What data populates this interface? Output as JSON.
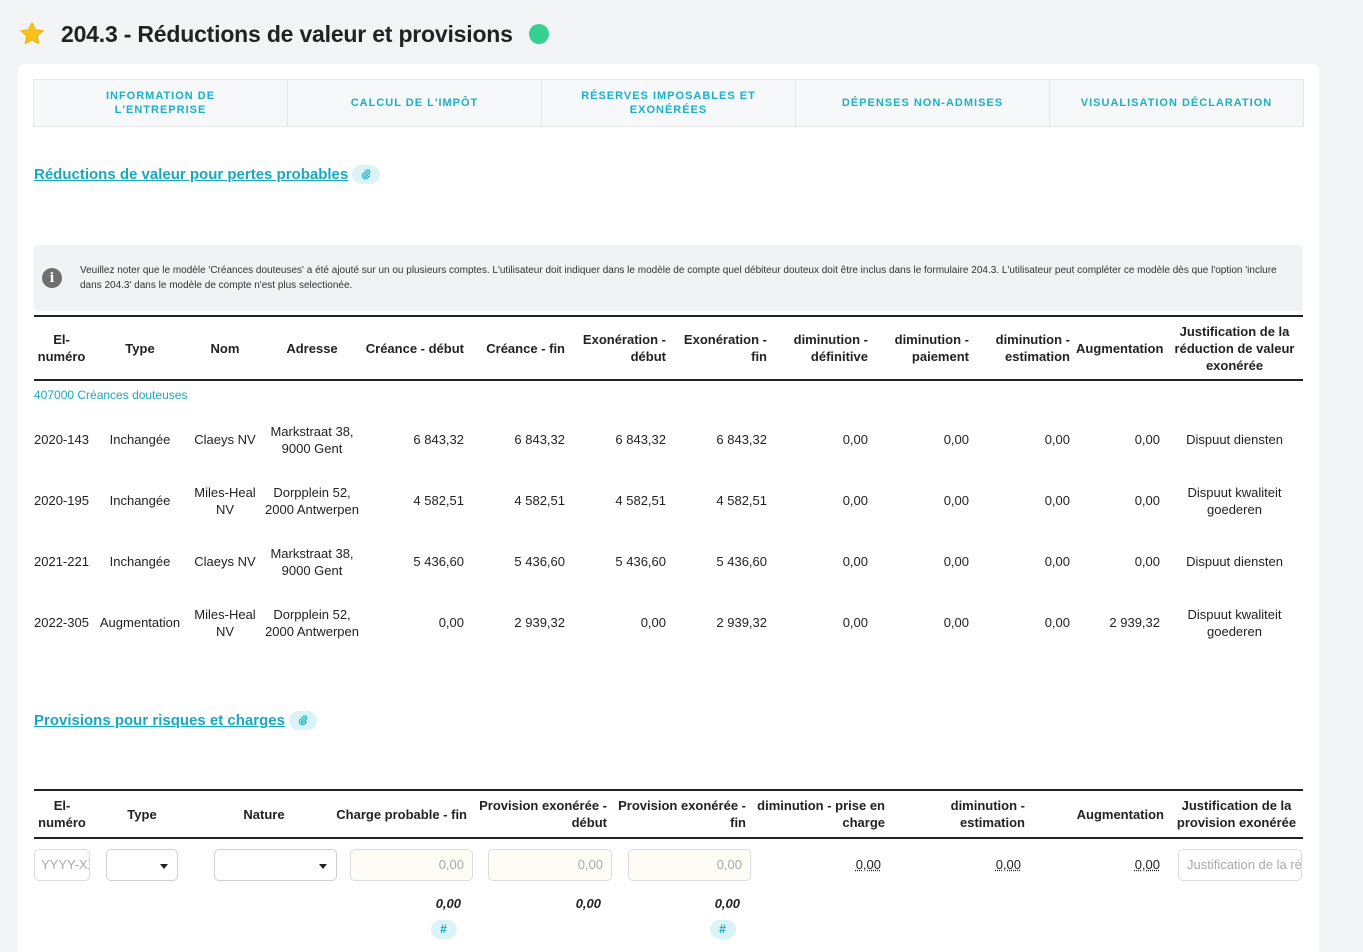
{
  "page": {
    "title": "204.3 - Réductions de valeur et provisions",
    "icons": {
      "favorite": "star-icon",
      "status": "status-dot"
    },
    "colors": {
      "accent": "#17a9c1",
      "status": "#36d190",
      "star": "#f6c21b"
    }
  },
  "tabs": [
    {
      "label": "INFORMATION DE L'ENTREPRISE"
    },
    {
      "label": "CALCUL DE L'IMPÔT"
    },
    {
      "label": "RÉSERVES IMPOSABLES ET EXONÉRÉES"
    },
    {
      "label": "DÉPENSES NON-ADMISES"
    },
    {
      "label": "VISUALISATION DÉCLARATION"
    }
  ],
  "section1": {
    "title": "Réductions de valeur pour pertes probables",
    "info": "Veuillez noter que le modèle 'Créances douteuses' a été ajouté sur un ou plusieurs comptes. L'utilisateur doit indiquer dans le modèle de compte quel débiteur douteux doit être inclus dans le formulaire 204.3. L'utilisateur peut compléter ce modèle dès que l'option 'inclure dans 204.3' dans le modèle de compte n'est plus selectionée.",
    "headers": [
      "El-numéro",
      "Type",
      "Nom",
      "Adresse",
      "Créance - début",
      "Créance - fin",
      "Exonération - début",
      "Exonération - fin",
      "diminution - définitive",
      "diminution - paiement",
      "diminution - estimation",
      "Augmentation",
      "Justification de la réduction de valeur exonérée"
    ],
    "group": "407000 Créances douteuses",
    "rows": [
      {
        "num": "2020-143",
        "type": "Inchangée",
        "nom": "Claeys NV",
        "adresse": "Markstraat 38, 9000 Gent",
        "cd": "6 843,32",
        "cf": "6 843,32",
        "ed": "6 843,32",
        "ef": "6 843,32",
        "dd": "0,00",
        "dp": "0,00",
        "de": "0,00",
        "aug": "0,00",
        "just": "Dispuut diensten"
      },
      {
        "num": "2020-195",
        "type": "Inchangée",
        "nom": "Miles-Heal NV",
        "adresse": "Dorpplein 52, 2000 Antwerpen",
        "cd": "4 582,51",
        "cf": "4 582,51",
        "ed": "4 582,51",
        "ef": "4 582,51",
        "dd": "0,00",
        "dp": "0,00",
        "de": "0,00",
        "aug": "0,00",
        "just": "Dispuut kwaliteit goederen"
      },
      {
        "num": "2021-221",
        "type": "Inchangée",
        "nom": "Claeys NV",
        "adresse": "Markstraat 38, 9000 Gent",
        "cd": "5 436,60",
        "cf": "5 436,60",
        "ed": "5 436,60",
        "ef": "5 436,60",
        "dd": "0,00",
        "dp": "0,00",
        "de": "0,00",
        "aug": "0,00",
        "just": "Dispuut diensten"
      },
      {
        "num": "2022-305",
        "type": "Augmentation",
        "nom": "Miles-Heal NV",
        "adresse": "Dorpplein 52, 2000 Antwerpen",
        "cd": "0,00",
        "cf": "2 939,32",
        "ed": "0,00",
        "ef": "2 939,32",
        "dd": "0,00",
        "dp": "0,00",
        "de": "0,00",
        "aug": "2 939,32",
        "just": "Dispuut kwaliteit goederen"
      }
    ]
  },
  "section2": {
    "title": "Provisions pour risques et charges",
    "headers": [
      "El-numéro",
      "Type",
      "Nature",
      "Charge probable - fin",
      "Provision exonérée - début",
      "Provision exonérée - fin",
      "diminution - prise en charge",
      "diminution - estimation",
      "Augmentation",
      "Justification de la provision exonérée"
    ],
    "input_row": {
      "num_placeholder": "YYYY-XXX",
      "type_value": "",
      "nature_value": "",
      "charge_placeholder": "0,00",
      "prov_debut_placeholder": "0,00",
      "prov_fin_placeholder": "0,00",
      "dim_prise": "0,00",
      "dim_estim": "0,00",
      "augmentation": "0,00",
      "just_placeholder": "Justification de la réduction"
    },
    "totals": {
      "charge": "0,00",
      "prov_debut": "0,00",
      "prov_fin": "0,00"
    },
    "hash_label": "#"
  }
}
